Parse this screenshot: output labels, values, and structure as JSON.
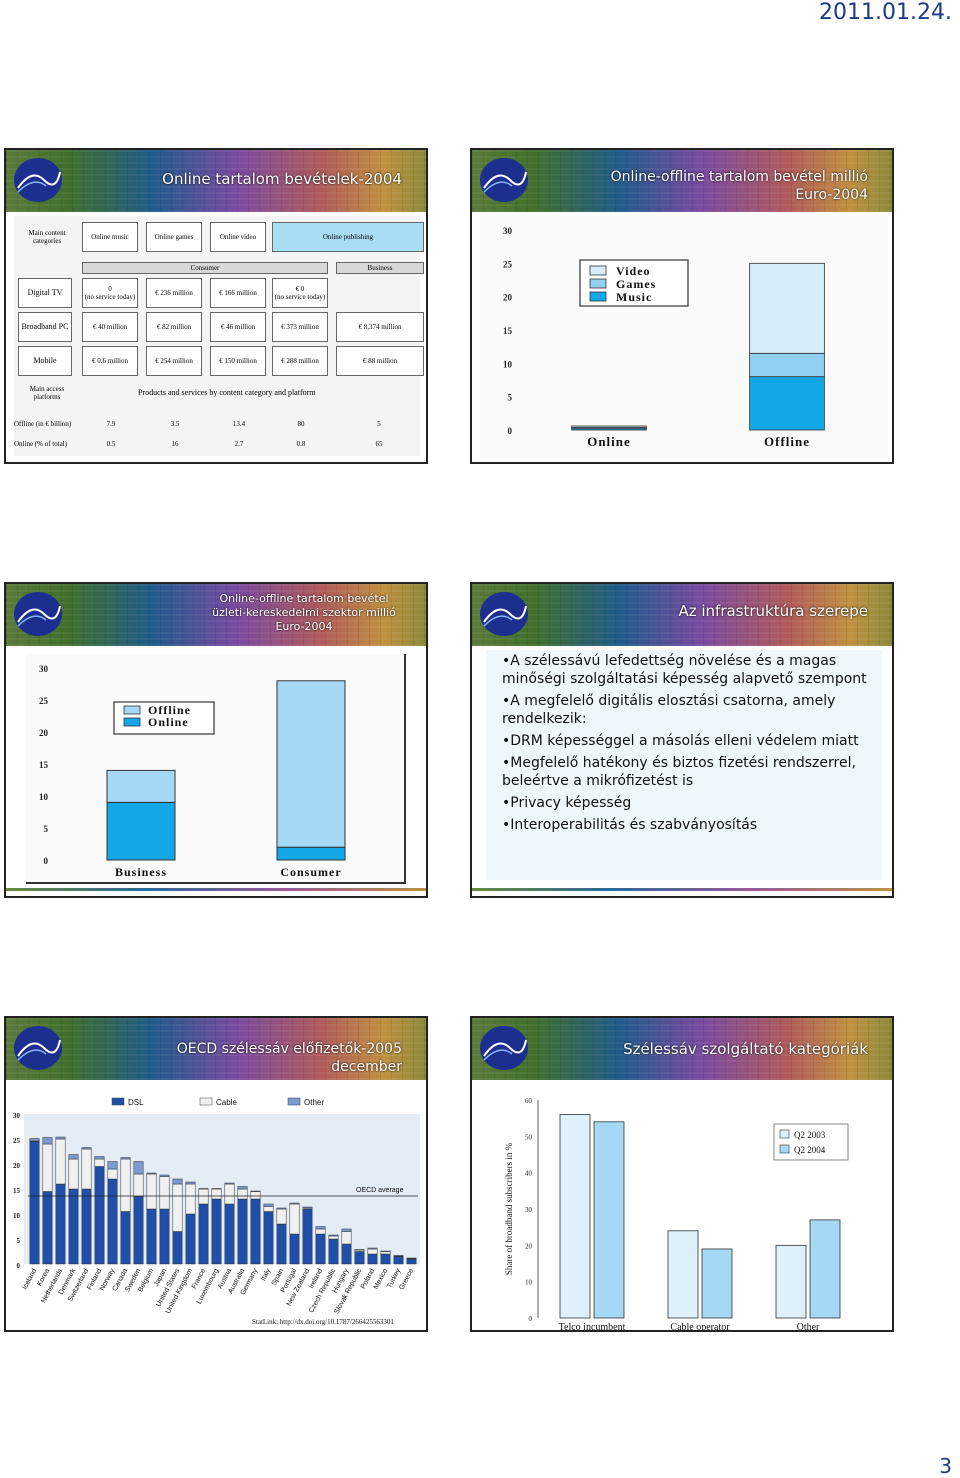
{
  "header": {
    "date": "2011.01.24."
  },
  "footer": {
    "page_number": "3"
  },
  "slides": [
    {
      "title": "Online tartalom bevételek-2004",
      "table": {
        "categories_label": "Main content categories",
        "columns": [
          "Online music",
          "Online games",
          "Online video",
          "Online publishing"
        ],
        "consumer_label": "Consumer",
        "business_label": "Business",
        "rows": [
          {
            "platform": "Digital TV",
            "cells": [
              "0\n(no service today)",
              "€ 236 million",
              "€ 166 million",
              "€ 0\n(no service today)",
              ""
            ]
          },
          {
            "platform": "Broadband PC",
            "cells": [
              "€ 40 million",
              "€ 82 million",
              "€ 46 million",
              "€ 373 million",
              "€ 8,374 million"
            ]
          },
          {
            "platform": "Mobile",
            "cells": [
              "€ 0.6 million",
              "€ 254 million",
              "€ 150 million",
              "€ 288 million",
              "€ 88 million"
            ]
          }
        ],
        "access_label": "Main access platforms",
        "products_label": "Products and services by content category and platform",
        "offline_label": "Offline (in € billion)",
        "offline_values": [
          "7.9",
          "3.5",
          "13.4",
          "80",
          "5"
        ],
        "online_label": "Online (% of total)",
        "online_values": [
          "0.5",
          "16",
          "2.7",
          "0.8",
          "65"
        ]
      }
    },
    {
      "title": "Online-offline tartalom bevétel millió Euro-2004",
      "chart_data": {
        "type": "bar",
        "stacked": true,
        "categories": [
          "Online",
          "Offline"
        ],
        "series": [
          {
            "name": "Music",
            "values": [
              0.2,
              8
            ]
          },
          {
            "name": "Games",
            "values": [
              0.2,
              3.5
            ]
          },
          {
            "name": "Video",
            "values": [
              0.2,
              13.5
            ]
          }
        ],
        "ylim": [
          0,
          30
        ],
        "yticks": [
          "0",
          "5",
          "10",
          "15",
          "20",
          "25",
          "30"
        ],
        "legend": [
          "Video",
          "Games",
          "Music"
        ],
        "legend_position": "top-left",
        "colors": {
          "Video": "#d6ecf8",
          "Games": "#8fd0f0",
          "Music": "#12a8e8"
        }
      }
    },
    {
      "title": "Online-offline tartalom bevétel üzleti-kereskedelmi szektor millió Euro-2004",
      "chart_data": {
        "type": "bar",
        "stacked": true,
        "categories": [
          "Business",
          "Consumer"
        ],
        "series": [
          {
            "name": "Online",
            "values": [
              9,
              2
            ]
          },
          {
            "name": "Offline",
            "values": [
              5,
              26
            ]
          }
        ],
        "ylim": [
          0,
          30
        ],
        "yticks": [
          "0",
          "5",
          "10",
          "15",
          "20",
          "25",
          "30"
        ],
        "legend": [
          "Offline",
          "Online"
        ],
        "legend_position": "top-left",
        "colors": {
          "Offline": "#a4d8f4",
          "Online": "#12a8e8"
        }
      }
    },
    {
      "title": "Az infrastruktúra szerepe",
      "bullets": [
        "•A szélessávú lefedettség növelése és a magas minőségi szolgáltatási képesség alapvető szempont",
        "•A megfelelő digitális elosztási csatorna, amely rendelkezik:",
        "•DRM képességgel a másolás elleni védelem miatt",
        "•Megfelelő hatékony és biztos fizetési rendszerrel, beleértve a mikrófizetést is",
        "•Privacy képesség",
        "•Interoperabilitás és szabványosítás"
      ]
    },
    {
      "title": "OECD szélessáv előfizetők-2005 december",
      "chart_data": {
        "type": "bar",
        "stacked": true,
        "categories": [
          "Iceland",
          "Korea",
          "Netherlands",
          "Denmark",
          "Switzerland",
          "Finland",
          "Norway",
          "Canada",
          "Sweden",
          "Belgium",
          "Japan",
          "United States",
          "United Kingdom",
          "France",
          "Luxembourg",
          "Austria",
          "Australia",
          "Germany",
          "Italy",
          "Spain",
          "Portugal",
          "New Zealand",
          "Ireland",
          "Czech Republic",
          "Hungary",
          "Slovak Republic",
          "Poland",
          "Mexico",
          "Turkey",
          "Greece"
        ],
        "series": [
          {
            "name": "DSL",
            "values": [
              24.5,
              14.5,
              16,
              15,
              15,
              19.5,
              17,
              10.5,
              13.5,
              11,
              11,
              6.5,
              10,
              12,
              13,
              12,
              13,
              13,
              10.5,
              8,
              6,
              11,
              6,
              5,
              4,
              2.5,
              2,
              2,
              1.5,
              1
            ]
          },
          {
            "name": "Cable",
            "values": [
              0.1,
              9.5,
              9,
              6,
              8,
              1.5,
              2,
              10.5,
              4.5,
              7,
              6.5,
              9.5,
              6,
              3,
              2,
              4,
              2,
              1.5,
              1,
              3,
              6,
              0.2,
              1,
              0.6,
              2.5,
              0.3,
              1,
              0.5,
              0.1,
              0.1
            ]
          },
          {
            "name": "Other",
            "values": [
              0.5,
              1.3,
              0.4,
              0.9,
              0.3,
              0.5,
              1.5,
              0.3,
              2.5,
              0.2,
              0.3,
              1,
              0.4,
              0.1,
              0.1,
              0.2,
              0.5,
              0.1,
              0.5,
              0.2,
              0.2,
              0.2,
              0.5,
              0.2,
              0.5,
              0.1,
              0.2,
              0.1,
              0.1,
              0.1
            ]
          }
        ],
        "ylim": [
          0,
          30
        ],
        "yticks": [
          "0",
          "5",
          "10",
          "15",
          "20",
          "25",
          "30"
        ],
        "legend": [
          "DSL",
          "Cable",
          "Other"
        ],
        "legend_position": "top",
        "oecd_average": 13.6,
        "oecd_label": "OECD average",
        "statlink": "StatLink: http://dx.doi.org/10.1787/266425563301",
        "colors": {
          "DSL": "#1f4fa8",
          "Cable": "#f0f0f0",
          "Other": "#7a9ad0"
        }
      }
    },
    {
      "title": "Szélessáv szolgáltató kategóriák",
      "chart_data": {
        "type": "bar",
        "categories": [
          "Telco incumbent",
          "Cable operator",
          "Other"
        ],
        "series": [
          {
            "name": "Q2 2003",
            "values": [
              56,
              24,
              20
            ]
          },
          {
            "name": "Q2 2004",
            "values": [
              54,
              19,
              27
            ]
          }
        ],
        "ylabel": "Share of broadband subscribers in %",
        "ylim": [
          0,
          60
        ],
        "yticks": [
          "0",
          "10",
          "20",
          "30",
          "40",
          "50",
          "60"
        ],
        "legend": [
          "Q2 2003",
          "Q2 2004"
        ],
        "legend_position": "top-right",
        "colors": {
          "Q2 2003": "#def1fa",
          "Q2 2004": "#a4d8f4"
        }
      }
    }
  ]
}
